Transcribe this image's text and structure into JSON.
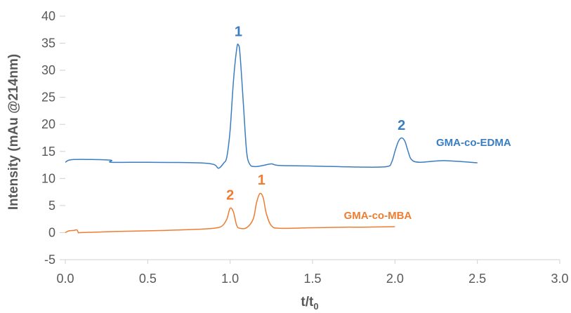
{
  "chart_data": {
    "type": "line",
    "title": "",
    "xlabel": "t/t",
    "xlabel_subscript": "0",
    "ylabel": "Intensity (mAu @214nm)",
    "xlim": [
      0.0,
      3.0
    ],
    "ylim": [
      -5,
      40
    ],
    "x_ticks": [
      "0.0",
      "0.5",
      "1.0",
      "1.5",
      "2.0",
      "2.5",
      "3.0"
    ],
    "y_ticks": [
      "-5",
      "0",
      "5",
      "10",
      "15",
      "20",
      "25",
      "30",
      "35",
      "40"
    ],
    "grid": false,
    "legend": "none",
    "series": [
      {
        "name": "GMA-co-EDMA",
        "color": "#3A7DC0",
        "x": [
          0.0,
          0.05,
          0.27,
          0.28,
          0.5,
          0.8,
          0.9,
          0.93,
          0.96,
          0.98,
          1.0,
          1.02,
          1.04,
          1.05,
          1.06,
          1.08,
          1.1,
          1.12,
          1.15,
          1.2,
          1.25,
          1.3,
          1.5,
          1.8,
          1.95,
          1.98,
          2.0,
          2.02,
          2.04,
          2.06,
          2.08,
          2.1,
          2.15,
          2.3,
          2.5
        ],
        "y": [
          13.0,
          13.5,
          13.4,
          13.0,
          13.0,
          12.9,
          12.6,
          11.9,
          12.8,
          14.0,
          19.0,
          28.0,
          34.0,
          34.7,
          33.0,
          24.0,
          15.0,
          12.6,
          12.2,
          12.4,
          12.7,
          12.4,
          12.3,
          12.1,
          12.2,
          13.0,
          15.0,
          16.8,
          17.5,
          16.9,
          15.0,
          13.5,
          13.0,
          13.3,
          12.9
        ]
      },
      {
        "name": "GMA-co-MBA",
        "color": "#ED7D31",
        "x": [
          0.0,
          0.02,
          0.05,
          0.07,
          0.08,
          0.1,
          0.3,
          0.6,
          0.8,
          0.9,
          0.95,
          0.98,
          1.0,
          1.02,
          1.04,
          1.06,
          1.1,
          1.14,
          1.16,
          1.18,
          1.2,
          1.22,
          1.25,
          1.3,
          1.5,
          1.7,
          1.8,
          2.0
        ],
        "y": [
          0.0,
          0.3,
          0.4,
          0.5,
          0.0,
          0.0,
          0.2,
          0.4,
          0.6,
          0.8,
          1.2,
          2.5,
          4.5,
          3.8,
          1.3,
          0.8,
          0.9,
          2.5,
          5.5,
          7.2,
          6.5,
          3.5,
          1.3,
          0.8,
          0.9,
          1.0,
          1.0,
          1.1
        ]
      }
    ],
    "annotations": [
      {
        "text": "1",
        "x": 1.05,
        "y": 36.3,
        "series": 0
      },
      {
        "text": "2",
        "x": 2.04,
        "y": 19.0,
        "series": 0
      },
      {
        "text": "1",
        "x": 1.19,
        "y": 8.9,
        "series": 1
      },
      {
        "text": "2",
        "x": 1.0,
        "y": 6.1,
        "series": 1
      }
    ],
    "series_labels": [
      {
        "text": "GMA-co-EDMA",
        "x": 2.25,
        "y": 16.0,
        "series": 0
      },
      {
        "text": "GMA-co-MBA",
        "x": 1.69,
        "y": 2.5,
        "series": 1
      }
    ]
  }
}
